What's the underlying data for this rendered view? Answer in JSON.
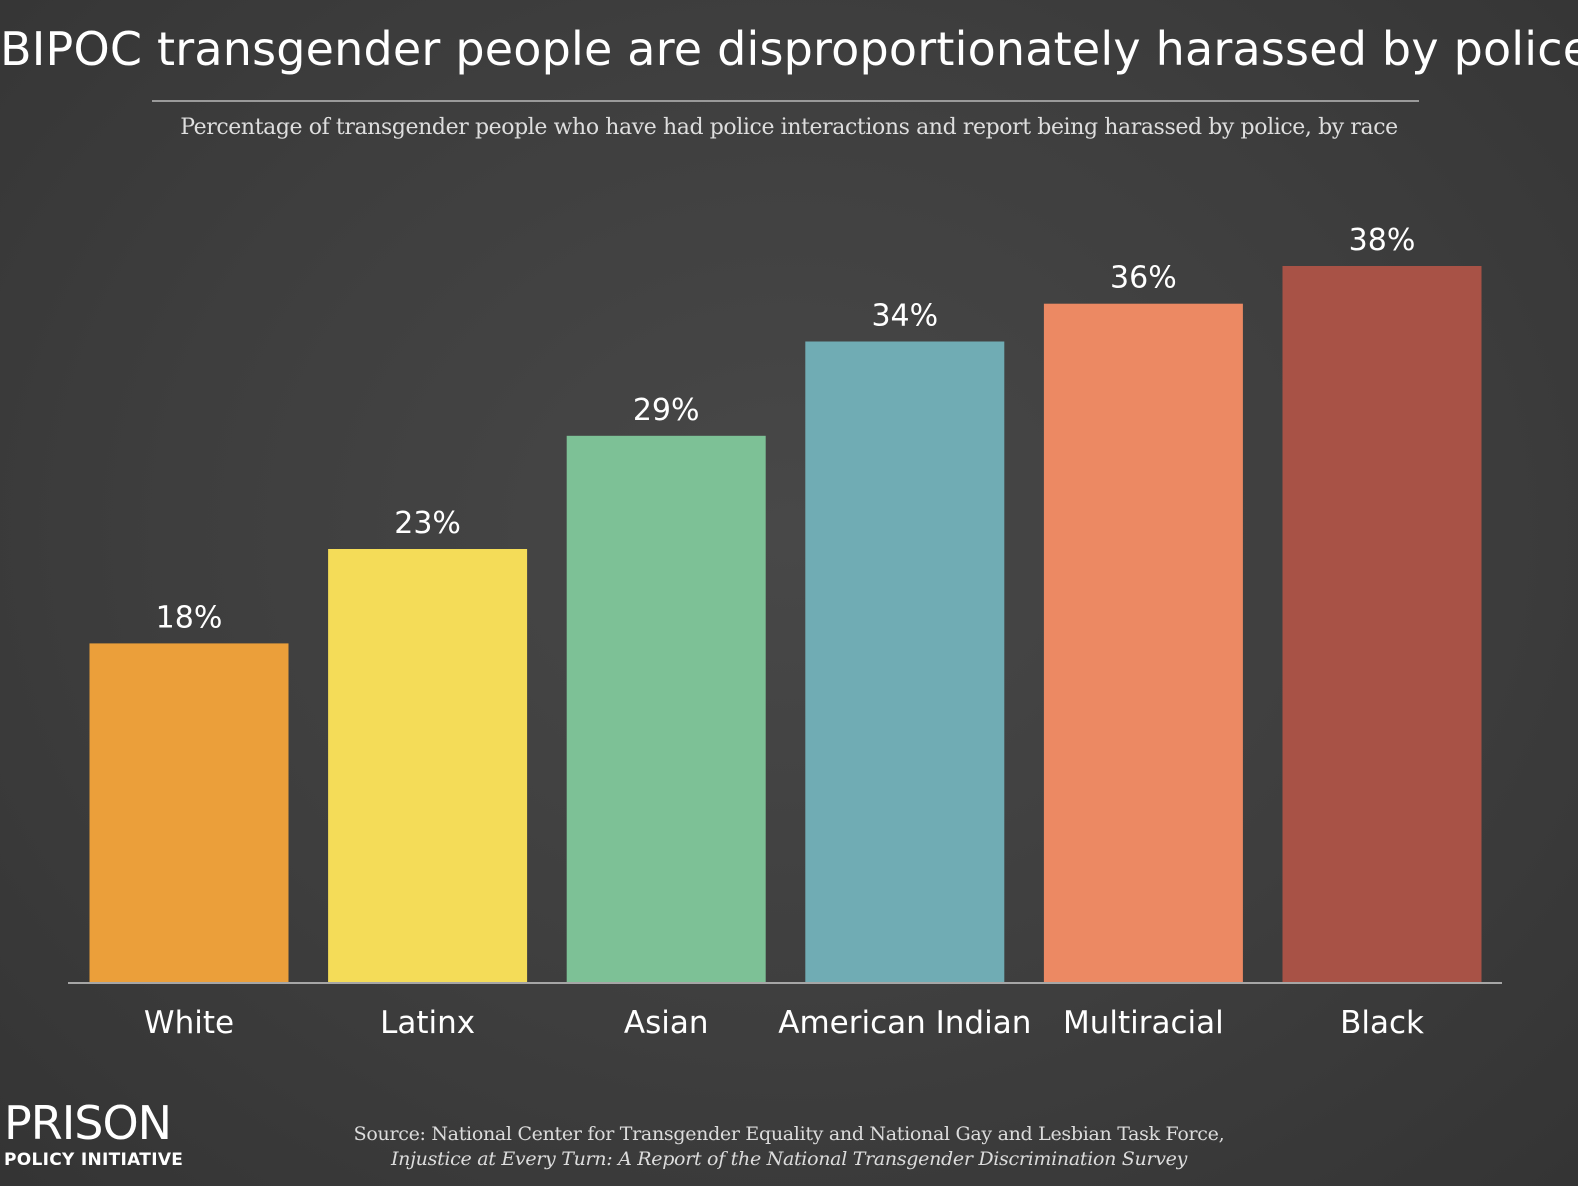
{
  "title": "BIPOC transgender people are disproportionately harassed by police",
  "subtitle": "Percentage of transgender people who have had police interactions and report being harassed by police, by race",
  "chart_data": {
    "type": "bar",
    "title": "BIPOC transgender people are disproportionately harassed by police",
    "subtitle": "Percentage of transgender people who have had police interactions and report being harassed by police, by race",
    "categories": [
      "White",
      "Latinx",
      "Asian",
      "American Indian",
      "Multiracial",
      "Black"
    ],
    "values": [
      18,
      23,
      29,
      34,
      36,
      38
    ],
    "value_labels": [
      "18%",
      "23%",
      "29%",
      "34%",
      "36%",
      "38%"
    ],
    "colors": [
      "#eb9f3a",
      "#f4dc58",
      "#7dc196",
      "#70acb4",
      "#ec8963",
      "#a85246"
    ],
    "xlabel": "",
    "ylabel": "",
    "ylim": [
      0,
      38
    ],
    "grid": false,
    "legend": "none"
  },
  "logo": {
    "top": "PRISON",
    "bottom": "POLICY INITIATIVE"
  },
  "source": {
    "line1": "Source: National Center for Transgender Equality and National Gay and Lesbian Task Force,",
    "line2": "Injustice at Every Turn: A Report of the National Transgender Discrimination Survey"
  }
}
